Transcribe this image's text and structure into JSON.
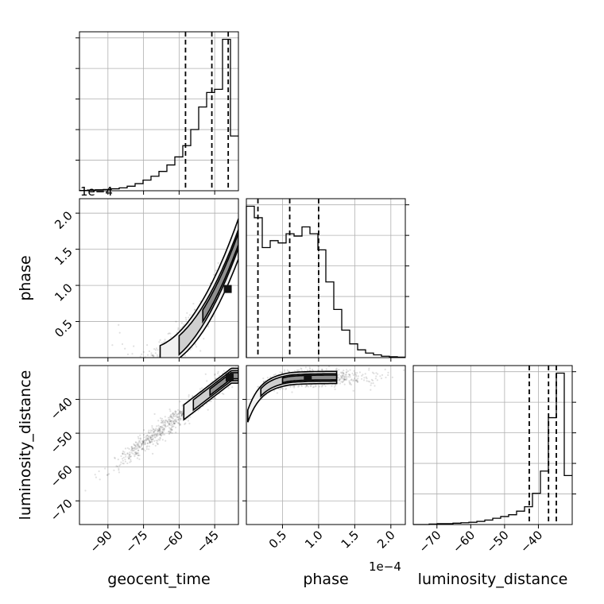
{
  "chart_data": {
    "type": "corner",
    "parameters": [
      "geocent_time",
      "phase",
      "luminosity_distance"
    ],
    "axis_labels": [
      "geocent_time",
      "phase",
      "luminosity_distance"
    ],
    "grid": true,
    "offsets": {
      "phase": "1e−4"
    },
    "ranges": {
      "geocent_time": [
        -102,
        -35
      ],
      "phase": [
        0.0,
        2.2
      ],
      "luminosity_distance": [
        -77,
        -30
      ]
    },
    "ticks": {
      "geocent_time": {
        "values": [
          -90,
          -75,
          -60,
          -45
        ],
        "labels": [
          "−90",
          "−75",
          "−60",
          "−45"
        ]
      },
      "phase": {
        "values": [
          0.5,
          1.0,
          1.5,
          2.0
        ],
        "labels": [
          "0.5",
          "1.0",
          "1.5",
          "2.0"
        ]
      },
      "luminosity_distance": {
        "values": [
          -70,
          -60,
          -50,
          -40
        ],
        "labels": [
          "−70",
          "−60",
          "−50",
          "−40"
        ]
      }
    },
    "histograms": {
      "geocent_time": {
        "edges": [
          -102.0,
          -98.65,
          -95.3,
          -91.95,
          -88.6,
          -85.25,
          -81.9,
          -78.55,
          -75.2,
          -71.85,
          -68.5,
          -65.15,
          -61.8,
          -58.45,
          -55.1,
          -51.75,
          -48.4,
          -45.05,
          -41.7,
          -38.35,
          -35.0
        ],
        "counts": [
          1,
          2,
          3,
          4,
          6,
          9,
          14,
          22,
          33,
          45,
          60,
          80,
          105,
          140,
          190,
          260,
          305,
          315,
          470,
          170
        ],
        "quantiles": [
          -57.3,
          -46.2,
          -39.3
        ]
      },
      "phase": {
        "edges": [
          0.0,
          0.11,
          0.22,
          0.33,
          0.44,
          0.55,
          0.66,
          0.77,
          0.88,
          0.99,
          1.1,
          1.21,
          1.32,
          1.43,
          1.54,
          1.65,
          1.76,
          1.87,
          1.98,
          2.09,
          2.2
        ],
        "counts": [
          330,
          305,
          240,
          255,
          250,
          270,
          265,
          285,
          270,
          235,
          165,
          105,
          60,
          30,
          17,
          10,
          6,
          3,
          2,
          1
        ],
        "quantiles": [
          0.16,
          0.6,
          1.0
        ]
      },
      "luminosity_distance": {
        "edges": [
          -77.0,
          -74.65,
          -72.3,
          -69.95,
          -67.6,
          -65.25,
          -62.9,
          -60.55,
          -58.2,
          -55.85,
          -53.5,
          -51.15,
          -48.8,
          -46.45,
          -44.1,
          -41.75,
          -39.4,
          -37.05,
          -34.7,
          -32.35,
          -30.0
        ],
        "counts": [
          0,
          0,
          1,
          2,
          2,
          3,
          4,
          5,
          7,
          10,
          14,
          18,
          22,
          30,
          40,
          70,
          120,
          240,
          340,
          110
        ],
        "quantiles": [
          -42.7,
          -37.0,
          -34.7
        ]
      }
    },
    "contours": {
      "phase_vs_geocent_time": {
        "peak": [
          -39.5,
          0.95
        ]
      },
      "luminosity_distance_vs_geocent_time": {
        "peak": [
          -38.7,
          -33.5
        ]
      },
      "luminosity_distance_vs_phase": {
        "peak": [
          0.85,
          -33.5
        ]
      }
    }
  }
}
